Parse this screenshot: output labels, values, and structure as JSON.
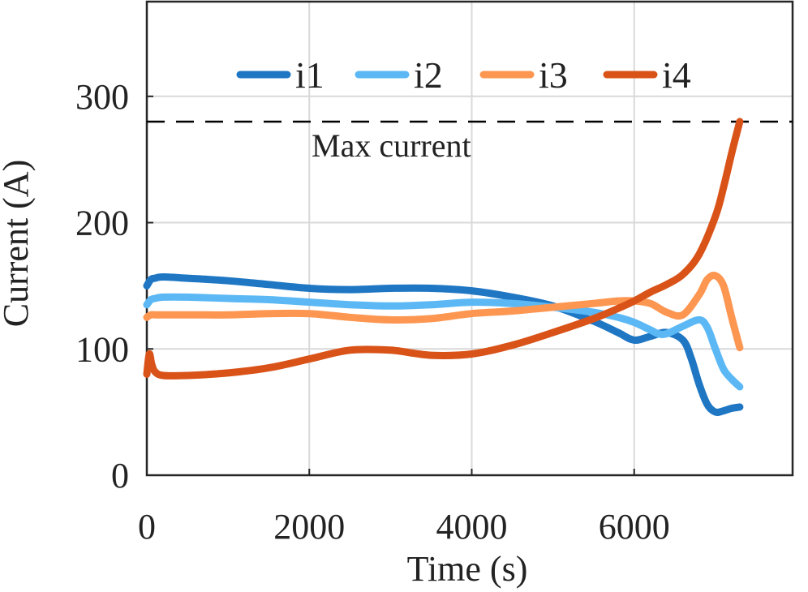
{
  "chart_data": {
    "type": "line",
    "xlabel": "Time (s)",
    "ylabel": "Current (A)",
    "xlim": [
      0,
      7950
    ],
    "ylim": [
      0,
      375
    ],
    "xticks": [
      0,
      2000,
      4000,
      6000
    ],
    "yticks": [
      0,
      100,
      200,
      300
    ],
    "grid": true,
    "legend_position": "top",
    "reference_line": {
      "label": "Max current",
      "y": 280,
      "style": "dashed",
      "color": "#000000"
    },
    "series": [
      {
        "name": "i1",
        "color": "#1f77c4",
        "x": [
          0,
          50,
          100,
          200,
          500,
          1000,
          1500,
          2000,
          2500,
          3000,
          3500,
          4000,
          4500,
          5000,
          5500,
          5800,
          6000,
          6200,
          6400,
          6600,
          6700,
          6800,
          6900,
          7000,
          7100,
          7200,
          7300
        ],
        "y": [
          150,
          155,
          156,
          157,
          156,
          154,
          151,
          148,
          147,
          148,
          148,
          146,
          141,
          134,
          122,
          113,
          107,
          110,
          113,
          107,
          93,
          72,
          56,
          50,
          51,
          53,
          54
        ]
      },
      {
        "name": "i2",
        "color": "#5bb8f5",
        "x": [
          0,
          50,
          100,
          200,
          500,
          1000,
          1500,
          2000,
          2500,
          3000,
          3500,
          4000,
          4500,
          5000,
          5500,
          5800,
          6000,
          6200,
          6300,
          6400,
          6600,
          6800,
          6900,
          7000,
          7100,
          7200,
          7300
        ],
        "y": [
          135,
          139,
          140,
          141,
          141,
          140,
          139,
          137,
          135,
          134,
          135,
          137,
          136,
          133,
          129,
          125,
          121,
          115,
          112,
          112,
          118,
          123,
          117,
          100,
          84,
          76,
          70
        ]
      },
      {
        "name": "i3",
        "color": "#fd9651",
        "x": [
          0,
          50,
          100,
          200,
          500,
          1000,
          1500,
          2000,
          2500,
          3000,
          3500,
          4000,
          4500,
          5000,
          5500,
          5800,
          6000,
          6200,
          6400,
          6600,
          6800,
          6900,
          7000,
          7100,
          7200,
          7300
        ],
        "y": [
          125,
          127,
          127,
          127,
          127,
          127,
          128,
          128,
          125,
          123,
          124,
          128,
          130,
          133,
          136,
          138,
          138,
          136,
          129,
          127,
          143,
          155,
          158,
          150,
          125,
          101
        ]
      },
      {
        "name": "i4",
        "color": "#d95319",
        "x": [
          0,
          30,
          60,
          100,
          200,
          500,
          1000,
          1500,
          2000,
          2500,
          3000,
          3500,
          4000,
          4500,
          5000,
          5500,
          5800,
          6000,
          6200,
          6400,
          6600,
          6800,
          7000,
          7100,
          7200,
          7300
        ],
        "y": [
          80,
          96,
          88,
          82,
          79,
          79,
          81,
          85,
          92,
          99,
          99,
          95,
          96,
          103,
          113,
          124,
          132,
          138,
          145,
          151,
          159,
          175,
          205,
          228,
          255,
          280
        ]
      }
    ]
  }
}
